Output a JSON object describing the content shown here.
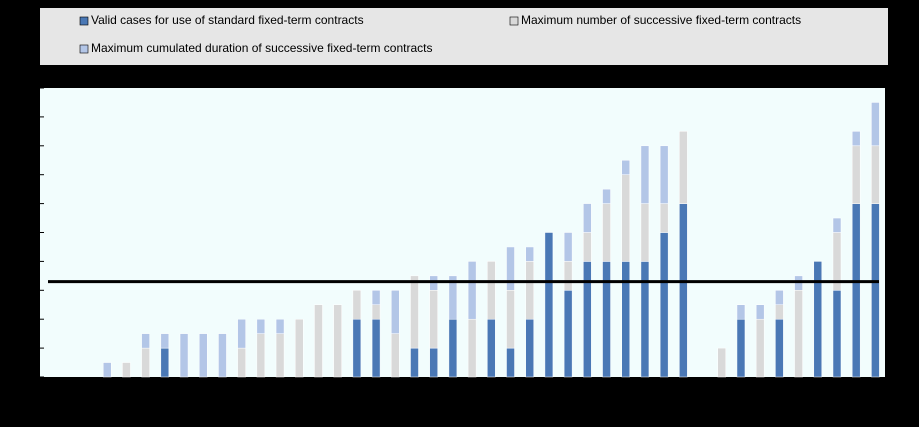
{
  "chart_data": {
    "type": "bar",
    "stacked": true,
    "categories": [
      null,
      null,
      null,
      null,
      null,
      null,
      null,
      null,
      null,
      null,
      null,
      null,
      null,
      null,
      null,
      null,
      null,
      null,
      null,
      null,
      null,
      null,
      null,
      null,
      null,
      null,
      null,
      null,
      null,
      null,
      null,
      null,
      null,
      null,
      null,
      null,
      null,
      null,
      null,
      null,
      null,
      null,
      null,
      null
    ],
    "series": [
      {
        "name": "Valid cases for use of standard fixed-term contracts",
        "color": "#4a78b5",
        "values": [
          0,
          0,
          0,
          0,
          0,
          0,
          0.5,
          0,
          0,
          0,
          0,
          0,
          0,
          0,
          0,
          0,
          1,
          1,
          0,
          0.5,
          0.5,
          1,
          0,
          1,
          0.5,
          1,
          2.5,
          1.5,
          2,
          2,
          2,
          2,
          2.5,
          3,
          0,
          0,
          1,
          0,
          1,
          0,
          2,
          1.5,
          3,
          3
        ]
      },
      {
        "name": "Maximum number of successive fixed-term contracts",
        "color": "#d9d9d9",
        "values": [
          0,
          0,
          0,
          0,
          0.25,
          0.5,
          0,
          0,
          0,
          0,
          0.5,
          0.75,
          0.75,
          1,
          1.25,
          1.25,
          0.5,
          0.25,
          0.75,
          1.25,
          1,
          0,
          1,
          1,
          1,
          1,
          0,
          0.5,
          0.5,
          1,
          1.5,
          1,
          0.5,
          1.25,
          0,
          0.5,
          0,
          1,
          0.25,
          1.5,
          0,
          1,
          1,
          1
        ]
      },
      {
        "name": "Maximum cumulated duration of successive fixed-term contracts",
        "color": "#b3c6e7",
        "values": [
          0,
          0,
          0,
          0.25,
          0,
          0.25,
          0.25,
          0.75,
          0.75,
          0.75,
          0.5,
          0.25,
          0.25,
          0,
          0,
          0,
          0,
          0.25,
          0.75,
          0,
          0.25,
          0.75,
          1,
          0,
          0.75,
          0.25,
          0,
          0.5,
          0.5,
          0.25,
          0.25,
          1,
          1,
          0,
          0,
          0,
          0.25,
          0.25,
          0.25,
          0.25,
          0,
          0.25,
          0.25,
          0.75
        ]
      }
    ],
    "reference_line": 1.65,
    "ylim": [
      0,
      5
    ],
    "yticks": [
      0,
      0.5,
      1,
      1.5,
      2,
      2.5,
      3,
      3.5,
      4,
      4.5,
      5
    ]
  }
}
